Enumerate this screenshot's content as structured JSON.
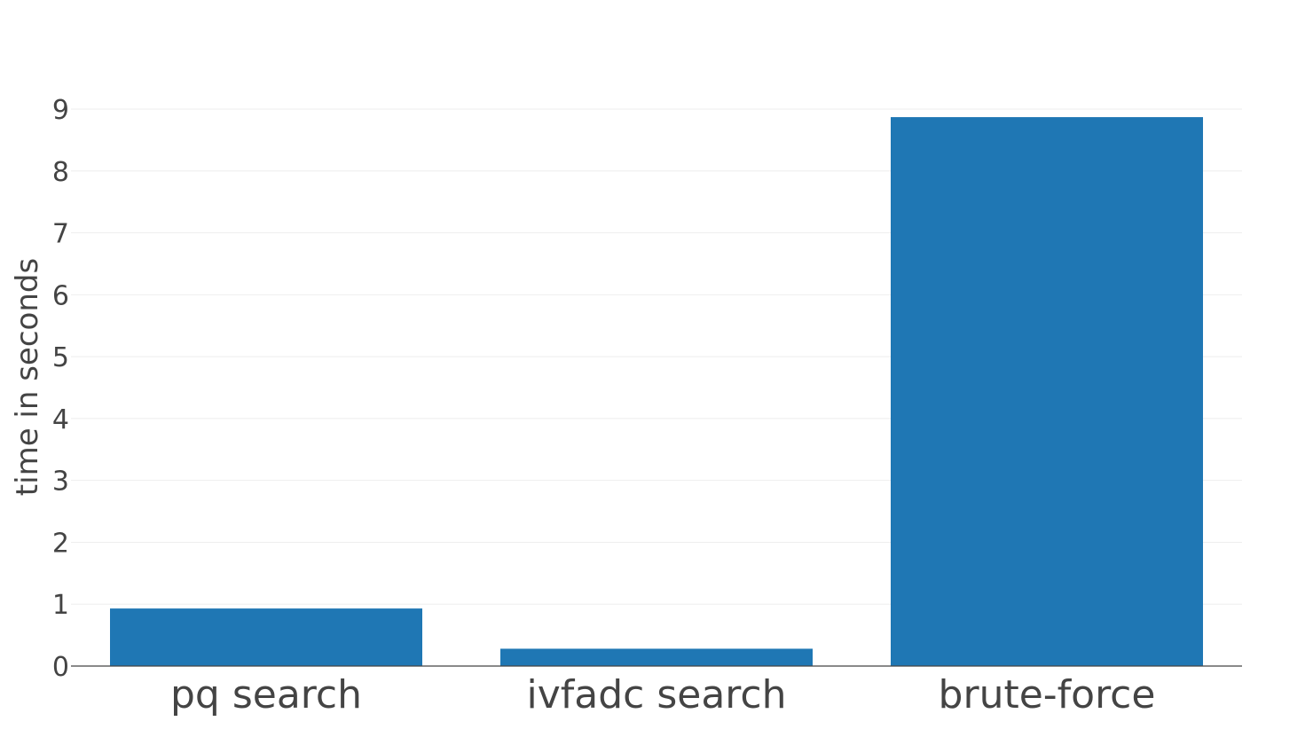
{
  "chart_data": {
    "type": "bar",
    "title": "",
    "xlabel": "",
    "ylabel": "time in seconds",
    "categories": [
      "pq search",
      "ivfadc search",
      "brute-force"
    ],
    "values": [
      0.93,
      0.28,
      8.87
    ],
    "ylim": [
      0,
      9
    ],
    "yticks": [
      "0",
      "1",
      "2",
      "3",
      "4",
      "5",
      "6",
      "7",
      "8",
      "9"
    ],
    "grid": true,
    "legend": "none",
    "bar_color": "#1f77b4"
  }
}
